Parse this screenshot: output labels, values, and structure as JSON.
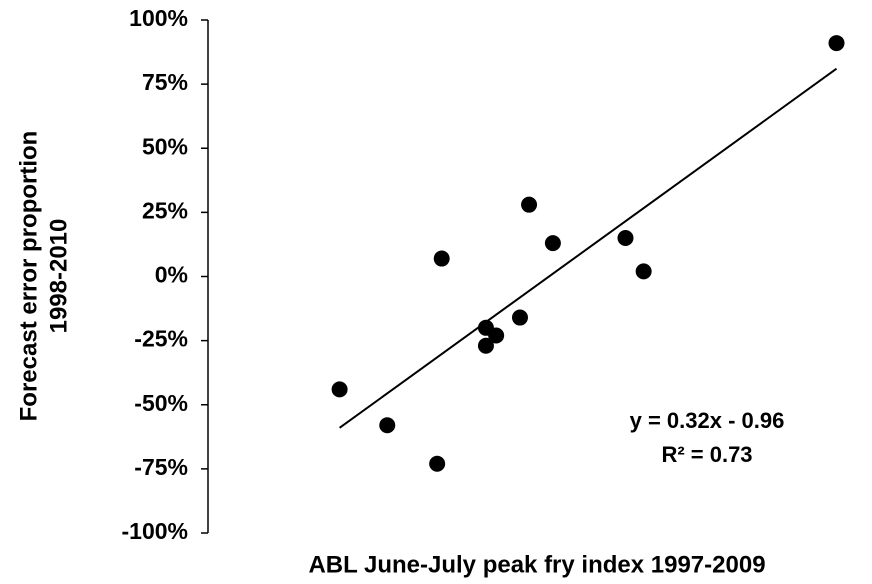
{
  "chart_data": {
    "type": "scatter",
    "xlabel": "ABL June-July peak fry index 1997-2009",
    "ylabel": [
      "Forecast error proportion",
      "1998-2010"
    ],
    "x": [
      1.16,
      1.58,
      2.02,
      2.06,
      2.45,
      2.45,
      2.54,
      2.75,
      2.83,
      3.04,
      3.68,
      3.84,
      5.54
    ],
    "values": [
      -44,
      -58,
      -73,
      7,
      -20,
      -27,
      -23,
      -16,
      28,
      13,
      15,
      2,
      91
    ],
    "color": "#000000",
    "trendline": {
      "x": [
        1.16,
        5.54
      ],
      "y": [
        -59,
        81
      ],
      "color": "#000000"
    },
    "annotations": [
      "y = 0.32x - 0.96",
      "R² = 0.73"
    ],
    "xlim": [
      0,
      5.8
    ],
    "ylim": [
      -100,
      100
    ],
    "yticks": [
      {
        "value": -100,
        "label": "-100%"
      },
      {
        "value": -75,
        "label": "-75%"
      },
      {
        "value": -50,
        "label": "-50%"
      },
      {
        "value": -25,
        "label": "-25%"
      },
      {
        "value": 0,
        "label": "0%"
      },
      {
        "value": 25,
        "label": "25%"
      },
      {
        "value": 50,
        "label": "50%"
      },
      {
        "value": 75,
        "label": "75%"
      },
      {
        "value": 100,
        "label": "100%"
      }
    ],
    "grid": false
  }
}
